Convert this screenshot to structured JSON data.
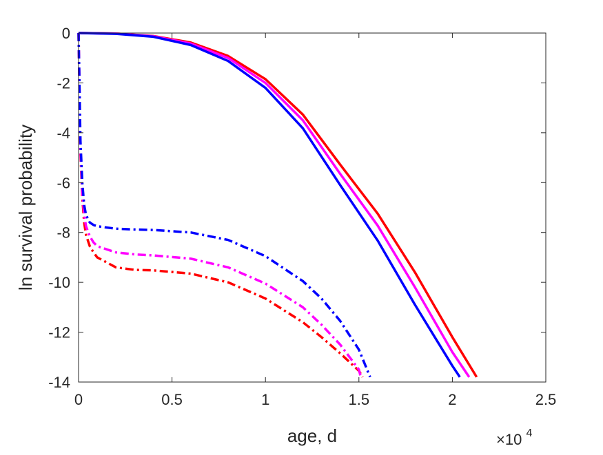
{
  "chart_data": {
    "type": "line",
    "title": "",
    "xlabel": "age, d",
    "ylabel": "ln survival probability",
    "x_exponent_label": {
      "base": "×10",
      "power": "4"
    },
    "xlim": [
      0,
      25000
    ],
    "ylim": [
      -14,
      0
    ],
    "x_ticks": [
      0,
      5000,
      10000,
      15000,
      20000,
      25000
    ],
    "x_tick_labels": [
      "0",
      "0.5",
      "1",
      "1.5",
      "2",
      "2.5"
    ],
    "y_ticks": [
      0,
      -2,
      -4,
      -6,
      -8,
      -10,
      -12,
      -14
    ],
    "y_tick_labels": [
      "0",
      "-2",
      "-4",
      "-6",
      "-8",
      "-10",
      "-12",
      "-14"
    ],
    "grid": false,
    "box": true,
    "series": [
      {
        "color": "#ff0000",
        "style": "solid",
        "x": [
          0,
          2000,
          4000,
          6000,
          8000,
          10000,
          12000,
          14000,
          16000,
          18000,
          20000,
          21300
        ],
        "y": [
          0,
          -0.02,
          -0.12,
          -0.38,
          -0.92,
          -1.85,
          -3.27,
          -5.28,
          -7.24,
          -9.6,
          -12.2,
          -13.8
        ]
      },
      {
        "color": "#ff00ff",
        "style": "solid",
        "x": [
          0,
          2000,
          4000,
          6000,
          8000,
          10000,
          12000,
          14000,
          16000,
          18000,
          20000,
          20900
        ],
        "y": [
          0,
          -0.02,
          -0.13,
          -0.42,
          -1.0,
          -2.0,
          -3.5,
          -5.65,
          -7.72,
          -10.2,
          -12.8,
          -13.8
        ]
      },
      {
        "color": "#0000ff",
        "style": "solid",
        "x": [
          0,
          2000,
          4000,
          6000,
          8000,
          10000,
          12000,
          14000,
          16000,
          18000,
          20000,
          20400
        ],
        "y": [
          0,
          -0.03,
          -0.15,
          -0.48,
          -1.12,
          -2.2,
          -3.82,
          -6.1,
          -8.32,
          -10.9,
          -13.35,
          -13.8
        ]
      },
      {
        "color": "#ff0000",
        "style": "dashdot",
        "x": [
          0,
          100,
          200,
          300,
          400,
          600,
          800,
          1000,
          2000,
          3000,
          4000,
          6000,
          8000,
          10000,
          12000,
          13000,
          14000,
          15000,
          15200
        ],
        "y": [
          0,
          -4.8,
          -6.6,
          -7.6,
          -8.1,
          -8.55,
          -8.8,
          -9.0,
          -9.4,
          -9.5,
          -9.52,
          -9.65,
          -10.0,
          -10.65,
          -11.6,
          -12.2,
          -12.85,
          -13.55,
          -13.8
        ]
      },
      {
        "color": "#ff00ff",
        "style": "dashdot",
        "x": [
          0,
          100,
          200,
          300,
          400,
          600,
          800,
          1000,
          2000,
          3000,
          4000,
          6000,
          8000,
          10000,
          12000,
          13000,
          14000,
          15000,
          15100
        ],
        "y": [
          0,
          -4.6,
          -6.4,
          -7.3,
          -7.75,
          -8.15,
          -8.4,
          -8.55,
          -8.8,
          -8.88,
          -8.92,
          -9.05,
          -9.4,
          -10.05,
          -11.0,
          -11.7,
          -12.5,
          -13.5,
          -13.8
        ]
      },
      {
        "color": "#0000ff",
        "style": "dashdot",
        "x": [
          0,
          100,
          200,
          300,
          400,
          600,
          800,
          1000,
          2000,
          3000,
          4000,
          6000,
          8000,
          10000,
          12000,
          13000,
          14000,
          15000,
          15600
        ],
        "y": [
          0,
          -4.3,
          -6.0,
          -6.9,
          -7.3,
          -7.6,
          -7.7,
          -7.75,
          -7.85,
          -7.88,
          -7.9,
          -8.0,
          -8.3,
          -8.95,
          -9.95,
          -10.65,
          -11.55,
          -12.7,
          -13.8
        ]
      }
    ]
  }
}
